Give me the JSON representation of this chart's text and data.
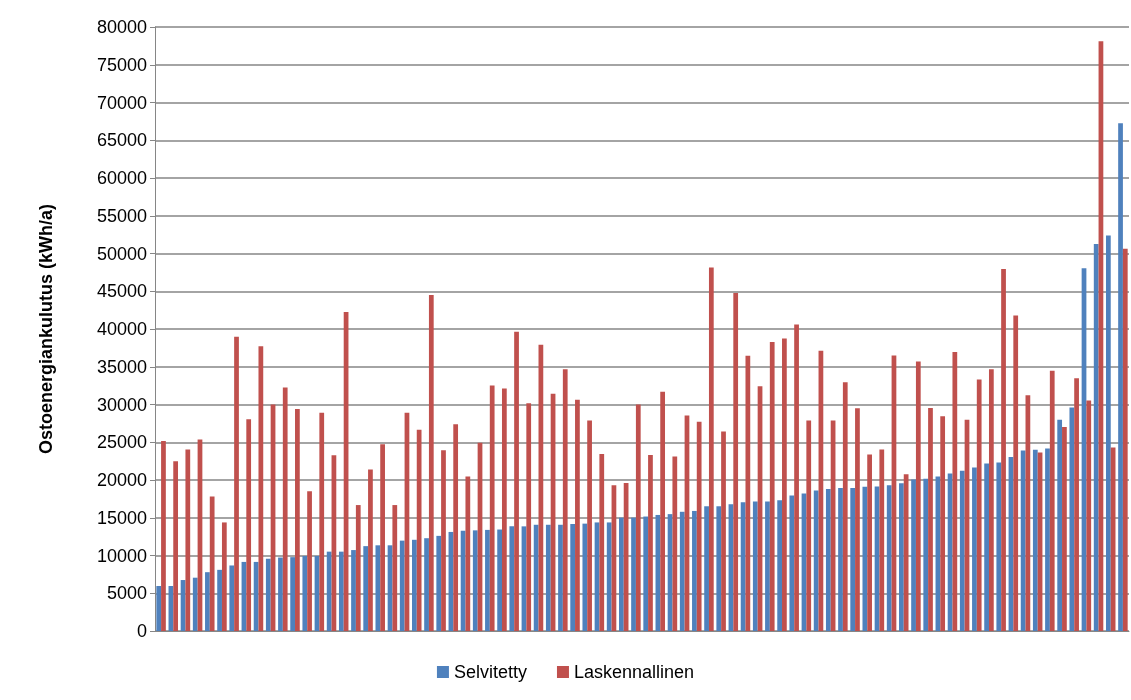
{
  "chart_data": {
    "type": "bar",
    "ylabel": "Ostoenergiankulutus (kWh/a)",
    "categories": [
      null,
      null,
      null,
      null,
      null,
      null,
      null,
      null,
      null,
      null,
      null,
      null,
      null,
      null,
      null,
      null,
      null,
      null,
      null,
      null,
      null,
      null,
      null,
      null,
      null,
      null,
      null,
      null,
      null,
      null,
      null,
      null,
      null,
      null,
      null,
      null,
      null,
      null,
      null,
      null,
      null,
      null,
      null,
      null,
      null,
      null,
      null,
      null,
      null,
      null,
      null,
      null,
      null,
      null,
      null,
      null,
      null,
      null,
      null,
      null,
      null,
      null,
      null,
      null,
      null,
      null,
      null,
      null,
      null,
      null,
      null,
      null,
      null,
      null,
      null,
      null,
      null,
      null,
      null,
      null
    ],
    "series": [
      {
        "name": "Selvitetty",
        "color": "#4f81bd",
        "values": [
          5960,
          5960,
          6750,
          7060,
          7790,
          8100,
          8680,
          9150,
          9150,
          9570,
          9730,
          9780,
          9940,
          9940,
          10510,
          10510,
          10720,
          11240,
          11350,
          11350,
          11970,
          12080,
          12290,
          12600,
          13120,
          13280,
          13330,
          13390,
          13440,
          13860,
          13860,
          14070,
          14070,
          14070,
          14170,
          14220,
          14380,
          14380,
          15010,
          15010,
          15160,
          15370,
          15480,
          15790,
          15900,
          16520,
          16520,
          16790,
          17050,
          17150,
          17150,
          17310,
          17940,
          18200,
          18620,
          18820,
          18930,
          18930,
          19090,
          19140,
          19300,
          19560,
          20080,
          20180,
          20450,
          20860,
          21230,
          21650,
          22170,
          22330,
          23060,
          23900,
          24000,
          24160,
          27980,
          29600,
          48060,
          51250,
          52400,
          67250
        ]
      },
      {
        "name": "Laskennallinen",
        "color": "#c0504d",
        "values": [
          25150,
          22490,
          24050,
          25360,
          17830,
          14380,
          38960,
          28030,
          37700,
          30010,
          32260,
          29390,
          18510,
          28920,
          23270,
          42250,
          16680,
          21390,
          24730,
          16680,
          28920,
          26670,
          44500,
          23950,
          27400,
          20450,
          24940,
          32520,
          32110,
          39640,
          30170,
          37910,
          31430,
          34670,
          30640,
          27870,
          23430,
          19300,
          19610,
          30010,
          23320,
          31690,
          23110,
          28550,
          27710,
          48160,
          26410,
          44760,
          36450,
          32420,
          38280,
          38750,
          40580,
          27870,
          37130,
          27870,
          32950,
          29490,
          23370,
          24050,
          36500,
          20760,
          35710,
          29540,
          28450,
          36970,
          27980,
          33310,
          34670,
          47950,
          41780,
          31220,
          23640,
          34460,
          27030,
          33470,
          30540,
          78120,
          24320,
          50620
        ]
      }
    ],
    "ylim": [
      0,
      80000
    ],
    "yticks": [
      0,
      5000,
      10000,
      15000,
      20000,
      25000,
      30000,
      35000,
      40000,
      45000,
      50000,
      55000,
      60000,
      65000,
      70000,
      75000,
      80000
    ],
    "grid": "y",
    "legend": "bottom"
  }
}
